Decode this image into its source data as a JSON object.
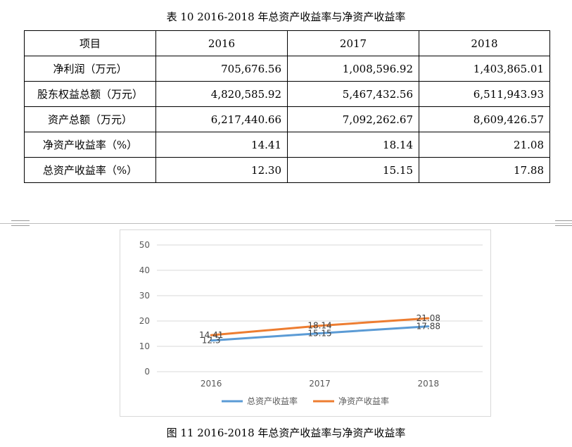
{
  "table_title": "表 10 2016-2018 年总资产收益率与净资产收益率",
  "table": {
    "header": [
      "项目",
      "2016",
      "2017",
      "2018"
    ],
    "rows": [
      {
        "label": "净利润（万元）",
        "values": [
          "705,676.56",
          "1,008,596.92",
          "1,403,865.01"
        ]
      },
      {
        "label": "股东权益总额（万元）",
        "values": [
          "4,820,585.92",
          "5,467,432.56",
          "6,511,943.93"
        ]
      },
      {
        "label": "资产总额（万元）",
        "values": [
          "6,217,440.66",
          "7,092,262.67",
          "8,609,426.57"
        ]
      },
      {
        "label": "净资产收益率（%）",
        "values": [
          "14.41",
          "18.14",
          "21.08"
        ]
      },
      {
        "label": "总资产收益率（%）",
        "values": [
          "12.30",
          "15.15",
          "17.88"
        ]
      }
    ]
  },
  "chart_data": {
    "type": "line",
    "title": "",
    "xlabel": "",
    "ylabel": "",
    "categories": [
      "2016",
      "2017",
      "2018"
    ],
    "ylim": [
      0,
      50
    ],
    "yticks": [
      0,
      10,
      20,
      30,
      40,
      50
    ],
    "grid": true,
    "legend": "bottom",
    "series": [
      {
        "name": "总资产收益率",
        "values": [
          12.3,
          15.15,
          17.88
        ],
        "labels": [
          "12.3",
          "15.15",
          "17.88"
        ],
        "color": "#5B9BD5"
      },
      {
        "name": "净资产收益率",
        "values": [
          14.41,
          18.14,
          21.08
        ],
        "labels": [
          "14.41",
          "18.14",
          "21.08"
        ],
        "color": "#ED7D31"
      }
    ]
  },
  "caption": "图 11 2016-2018 年总资产收益率与净资产收益率"
}
